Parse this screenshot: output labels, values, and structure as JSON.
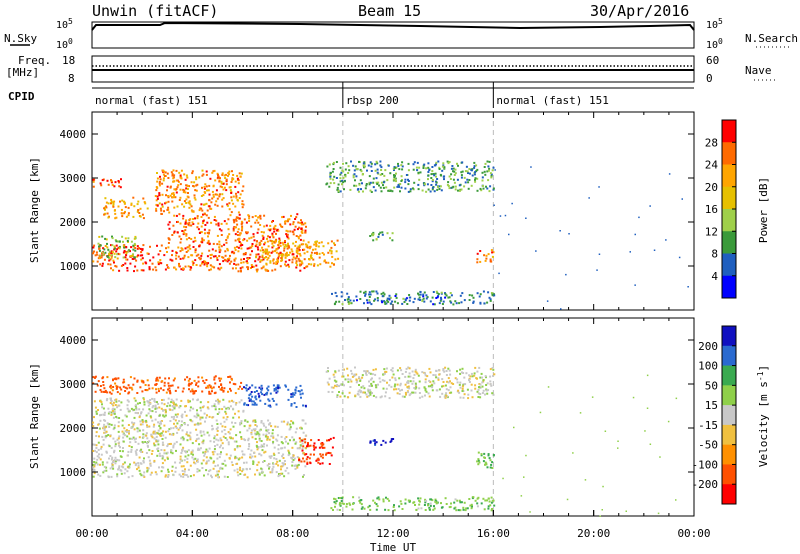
{
  "header": {
    "station": "Unwin (fitACF)",
    "beam": "Beam 15",
    "date": "30/Apr/2016"
  },
  "nsky_panel": {
    "left_label": "N.Sky",
    "right_label": "N.Search",
    "ticks": [
      "10^5",
      "10^0"
    ]
  },
  "freq_panel": {
    "left_label_1": "Freq.",
    "left_label_2": "[MHz]",
    "left_ticks": [
      "18",
      "8"
    ],
    "right_label": "Nave",
    "right_ticks": [
      "60",
      "0"
    ]
  },
  "cpid_panel": {
    "label": "CPID",
    "modes": [
      {
        "start_hour": 0,
        "end_hour": 10,
        "label": "normal (fast) 151"
      },
      {
        "start_hour": 10,
        "end_hour": 16,
        "label": "rbsp 200"
      },
      {
        "start_hour": 16,
        "end_hour": 24,
        "label": "normal (fast) 151"
      }
    ]
  },
  "x_axis": {
    "label": "Time UT",
    "ticks": [
      "00:00",
      "04:00",
      "08:00",
      "12:00",
      "16:00",
      "20:00",
      "00:00"
    ]
  },
  "chart_data": [
    {
      "type": "heatmap",
      "quantity": "Power",
      "xlabel": "Time UT",
      "ylabel": "Slant Range [km]",
      "xlim": [
        0,
        24
      ],
      "ylim": [
        0,
        4500
      ],
      "y_ticks": [
        "1000",
        "2000",
        "3000",
        "4000"
      ],
      "colorbar_label": "Power [dB]",
      "colorbar_ticks": [
        "28",
        "24",
        "20",
        "16",
        "12",
        "8",
        "4"
      ],
      "colorbar_colors": [
        "#ff0000",
        "#ff6a00",
        "#ffa500",
        "#e6c000",
        "#9fd04a",
        "#3a9a3a",
        "#1f5fbf",
        "#0000ff"
      ],
      "regions": [
        {
          "t0": 0.0,
          "t1": 3.0,
          "r0": 900,
          "r1": 1500,
          "dB": 26
        },
        {
          "t0": 0.2,
          "t1": 1.8,
          "r0": 1200,
          "r1": 1700,
          "dB": 12
        },
        {
          "t0": 3.0,
          "t1": 8.5,
          "r0": 900,
          "r1": 2200,
          "dB": 24
        },
        {
          "t0": 2.5,
          "t1": 6.0,
          "r0": 2200,
          "r1": 3200,
          "dB": 22
        },
        {
          "t0": 0.0,
          "t1": 1.2,
          "r0": 2800,
          "r1": 3000,
          "dB": 26
        },
        {
          "t0": 0.4,
          "t1": 2.2,
          "r0": 2100,
          "r1": 2600,
          "dB": 20
        },
        {
          "t0": 6.5,
          "t1": 9.8,
          "r0": 1000,
          "r1": 1600,
          "dB": 20
        },
        {
          "t0": 9.3,
          "t1": 16.0,
          "r0": 2700,
          "r1": 3400,
          "dB": 8
        },
        {
          "t0": 11.0,
          "t1": 12.0,
          "r0": 1600,
          "r1": 1800,
          "dB": 10
        },
        {
          "t0": 15.3,
          "t1": 16.0,
          "r0": 1100,
          "r1": 1400,
          "dB": 22
        },
        {
          "t0": 9.5,
          "t1": 16.0,
          "r0": 150,
          "r1": 450,
          "dB": 6
        }
      ]
    },
    {
      "type": "heatmap",
      "quantity": "Velocity",
      "xlabel": "Time UT",
      "ylabel": "Slant Range [km]",
      "xlim": [
        0,
        24
      ],
      "ylim": [
        0,
        4500
      ],
      "y_ticks": [
        "1000",
        "2000",
        "3000",
        "4000"
      ],
      "colorbar_label": "Velocity [m s^-1]",
      "colorbar_ticks": [
        "200",
        "100",
        "50",
        "15",
        "-15",
        "-50",
        "-100",
        "-200"
      ],
      "colorbar_colors": [
        "#1010c0",
        "#2a6ad0",
        "#3aaa50",
        "#8fd04a",
        "#c8c8c8",
        "#f0c040",
        "#ff9000",
        "#ff5000",
        "#ff0000"
      ],
      "regions": [
        {
          "t0": 0.0,
          "t1": 8.5,
          "r0": 900,
          "r1": 2200,
          "v": 0
        },
        {
          "t0": 0.0,
          "t1": 6.0,
          "r0": 2200,
          "r1": 2700,
          "v": 0
        },
        {
          "t0": 0.0,
          "t1": 6.0,
          "r0": 2800,
          "r1": 3200,
          "v": -120
        },
        {
          "t0": 6.0,
          "t1": 8.5,
          "r0": 2500,
          "r1": 3000,
          "v": 180
        },
        {
          "t0": 8.2,
          "t1": 9.6,
          "r0": 1200,
          "r1": 1800,
          "v": -200
        },
        {
          "t0": 9.3,
          "t1": 16.0,
          "r0": 2700,
          "r1": 3400,
          "v": 0
        },
        {
          "t0": 11.0,
          "t1": 12.0,
          "r0": 1600,
          "r1": 1800,
          "v": 220
        },
        {
          "t0": 15.3,
          "t1": 16.0,
          "r0": 1100,
          "r1": 1500,
          "v": 60
        },
        {
          "t0": 9.5,
          "t1": 16.0,
          "r0": 150,
          "r1": 450,
          "v": 40
        }
      ]
    }
  ]
}
